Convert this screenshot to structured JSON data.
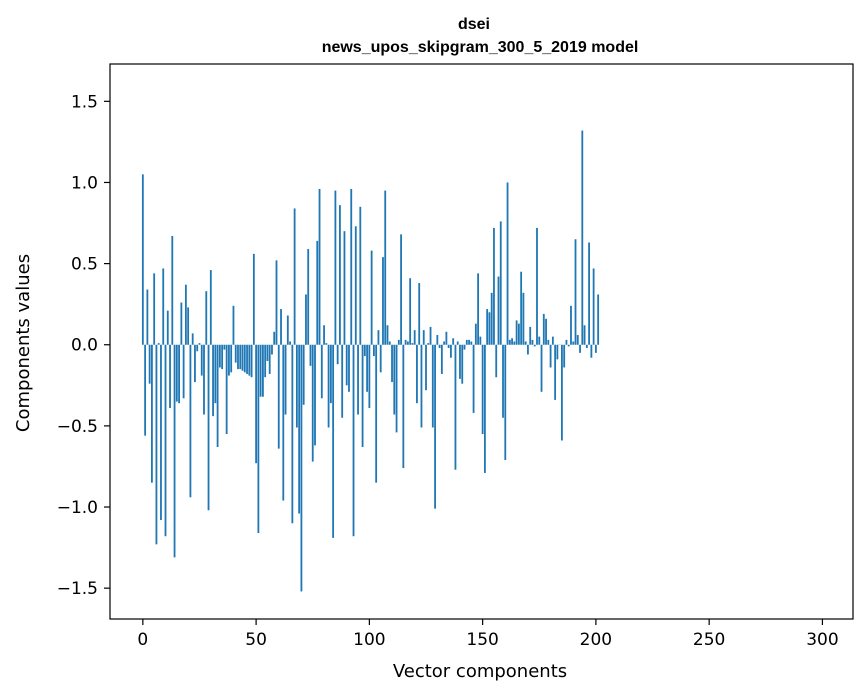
{
  "chart_data": {
    "type": "bar",
    "title": "dsei",
    "subtitle": "news_upos_skipgram_300_5_2019 model",
    "xlabel": "Vector components",
    "ylabel": "Components values",
    "xlim": [
      -14.5,
      313.5
    ],
    "ylim": [
      -1.69,
      1.73
    ],
    "x_ticks": [
      0,
      50,
      100,
      150,
      200,
      250,
      300
    ],
    "x_tick_labels": [
      "0",
      "50",
      "100",
      "150",
      "200",
      "250",
      "300"
    ],
    "y_ticks": [
      -1.5,
      -1.0,
      -0.5,
      0.0,
      0.5,
      1.0,
      1.5
    ],
    "y_tick_labels": [
      "−1.5",
      "−1.0",
      "−0.5",
      "0.0",
      "0.5",
      "1.0",
      "1.5"
    ],
    "grid": false,
    "bar_color": "#1f77b4",
    "values": [
      1.05,
      -0.56,
      0.34,
      -0.24,
      -0.85,
      0.44,
      -1.23,
      0.01,
      -1.08,
      0.47,
      -1.18,
      0.21,
      -0.39,
      0.67,
      -1.31,
      -0.35,
      -0.36,
      0.26,
      -0.33,
      0.37,
      0.23,
      -0.94,
      0.07,
      -0.23,
      -0.04,
      0.01,
      -0.19,
      -0.43,
      0.33,
      -1.02,
      0.46,
      -0.44,
      -0.36,
      -0.63,
      -0.14,
      -0.15,
      -0.03,
      -0.55,
      -0.19,
      -0.17,
      0.24,
      -0.11,
      -0.15,
      -0.15,
      -0.16,
      -0.17,
      -0.18,
      -0.19,
      -0.2,
      0.56,
      -0.73,
      -1.16,
      -0.32,
      -0.32,
      -0.2,
      -0.1,
      -0.18,
      -0.06,
      0.08,
      0.52,
      -0.64,
      0.22,
      -0.96,
      -0.43,
      0.18,
      0.02,
      -1.1,
      0.84,
      -0.51,
      -1.04,
      -1.52,
      -0.37,
      0.31,
      0.59,
      -0.13,
      -0.72,
      -0.62,
      0.64,
      0.96,
      -0.33,
      0.12,
      0.01,
      -0.51,
      -0.36,
      -1.19,
      0.95,
      -0.12,
      0.86,
      -0.45,
      0.7,
      -0.25,
      -0.29,
      0.96,
      -1.18,
      0.73,
      -0.43,
      0.85,
      -0.63,
      -0.07,
      -0.29,
      -0.39,
      0.58,
      -0.07,
      -0.85,
      0.09,
      -0.17,
      0.54,
      0.95,
      0.12,
      0.02,
      -0.23,
      -0.43,
      -0.54,
      0.03,
      0.68,
      -0.76,
      0.03,
      0.02,
      0.41,
      0.01,
      0.09,
      -0.36,
      0.38,
      -0.51,
      0.09,
      -0.28,
      0.01,
      0.11,
      -0.51,
      -1.01,
      0.06,
      -0.02,
      -0.18,
      0.02,
      0.08,
      -0.02,
      -0.08,
      0.04,
      -0.77,
      0.02,
      -0.21,
      -0.24,
      -0.03,
      0.03,
      0.03,
      0.02,
      -0.42,
      0.13,
      0.44,
      0.05,
      -0.55,
      -0.79,
      0.22,
      0.2,
      0.32,
      0.72,
      -0.2,
      0.42,
      0.76,
      -0.45,
      -0.71,
      1.0,
      0.03,
      0.04,
      0.02,
      0.15,
      0.13,
      0.45,
      0.32,
      0.02,
      -0.06,
      0.11,
      0.03,
      -0.01,
      0.72,
      0.05,
      -0.29,
      0.19,
      0.16,
      0.03,
      -0.14,
      0.05,
      -0.34,
      -0.09,
      0.0,
      -0.59,
      -0.14,
      0.03,
      -0.01,
      0.24,
      0.02,
      0.65,
      0.06,
      -0.05,
      1.32,
      0.12,
      -0.02,
      0.63,
      -0.08,
      0.47,
      -0.05,
      0.31
    ],
    "series": [
      {
        "values_ref": "values"
      }
    ]
  }
}
